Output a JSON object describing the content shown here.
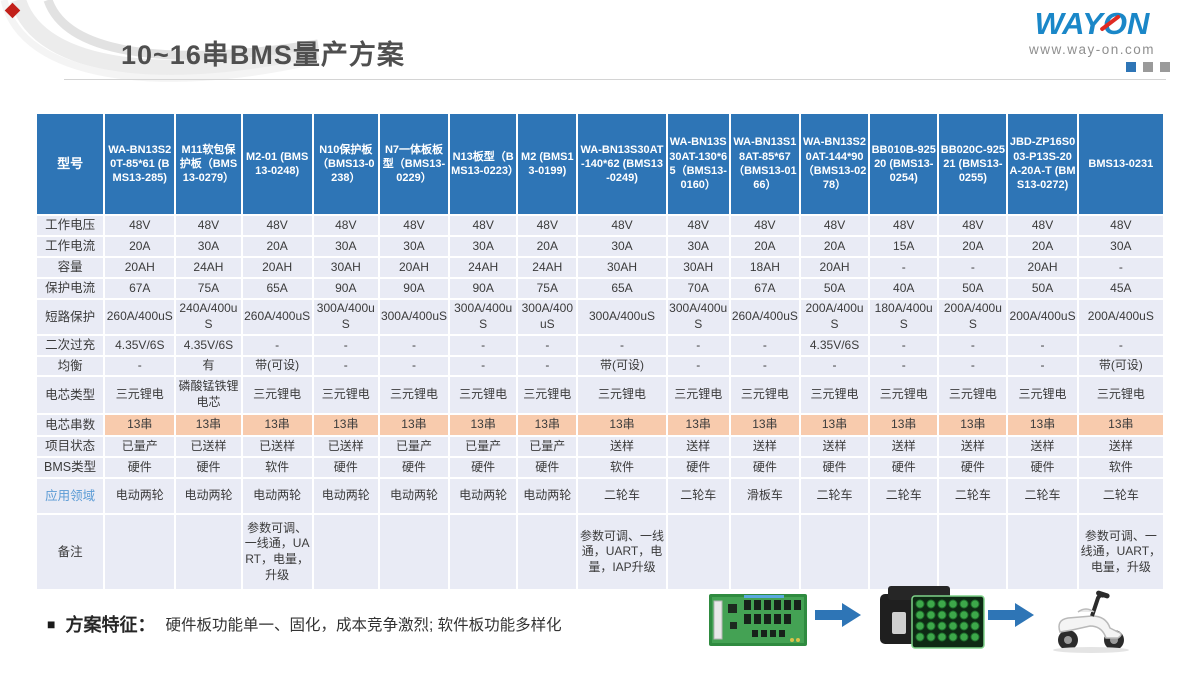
{
  "title": "10~16串BMS量产方案",
  "logo": {
    "brand_way": "WAY",
    "brand_o": "O",
    "brand_n": "N",
    "site": "www.way-on.com"
  },
  "colors": {
    "header_blue": "#2e75b6",
    "cell_bg": "#e9ebf5",
    "highlight_orange": "#f8cbad",
    "app_label_blue": "#5b9bd5",
    "logo_blue": "#1a87c8",
    "logo_red": "#e02a22"
  },
  "table": {
    "corner": "型号",
    "models": [
      "WA-BN13S20T-85*61 (BMS13-285)",
      "M11软包保护板（BMS13-0279）",
      "M2-01 (BMS13-0248)",
      "N10保护板（BMS13-0238）",
      "N7一体板板型（BMS13-0229）",
      "N13板型（BMS13-0223）",
      "M2 (BMS13-0199)",
      "WA-BN13S30AT-140*62 (BMS13-0249)",
      "WA-BN13S30AT-130*65（BMS13-0160）",
      "WA-BN13S18AT-85*67（BMS13-0166）",
      "WA-BN13S20AT-144*90（BMS13-0278）",
      "BB010B-92520 (BMS13-0254)",
      "BB020C-92521 (BMS13-0255)",
      "JBD-ZP16S003-P13S-20A-20A-T (BMS13-0272)",
      "BMS13-0231"
    ],
    "rows": [
      {
        "label": "工作电压",
        "values": [
          "48V",
          "48V",
          "48V",
          "48V",
          "48V",
          "48V",
          "48V",
          "48V",
          "48V",
          "48V",
          "48V",
          "48V",
          "48V",
          "48V",
          "48V"
        ]
      },
      {
        "label": "工作电流",
        "values": [
          "20A",
          "30A",
          "20A",
          "30A",
          "30A",
          "30A",
          "20A",
          "30A",
          "30A",
          "20A",
          "20A",
          "15A",
          "20A",
          "20A",
          "30A"
        ]
      },
      {
        "label": "容量",
        "values": [
          "20AH",
          "24AH",
          "20AH",
          "30AH",
          "20AH",
          "24AH",
          "24AH",
          "30AH",
          "30AH",
          "18AH",
          "20AH",
          "-",
          "-",
          "20AH",
          "-"
        ]
      },
      {
        "label": "保护电流",
        "values": [
          "67A",
          "75A",
          "65A",
          "90A",
          "90A",
          "90A",
          "75A",
          "65A",
          "70A",
          "67A",
          "50A",
          "40A",
          "50A",
          "50A",
          "45A"
        ]
      },
      {
        "label": "短路保护",
        "values": [
          "260A/400uS",
          "240A/400uS",
          "260A/400uS",
          "300A/400uS",
          "300A/400uS",
          "300A/400uS",
          "300A/400uS",
          "300A/400uS",
          "300A/400uS",
          "260A/400uS",
          "200A/400uS",
          "180A/400uS",
          "200A/400uS",
          "200A/400uS",
          "200A/400uS"
        ]
      },
      {
        "label": "二次过充",
        "values": [
          "4.35V/6S",
          "4.35V/6S",
          "-",
          "-",
          "-",
          "-",
          "-",
          "-",
          "-",
          "-",
          "4.35V/6S",
          "-",
          "-",
          "-",
          "-"
        ]
      },
      {
        "label": "均衡",
        "values": [
          "-",
          "有",
          "带(可设)",
          "-",
          "-",
          "-",
          "-",
          "带(可设)",
          "-",
          "-",
          "-",
          "-",
          "-",
          "-",
          "带(可设)"
        ]
      },
      {
        "label": "电芯类型",
        "values": [
          "三元锂电",
          "磷酸锰铁锂电芯",
          "三元锂电",
          "三元锂电",
          "三元锂电",
          "三元锂电",
          "三元锂电",
          "三元锂电",
          "三元锂电",
          "三元锂电",
          "三元锂电",
          "三元锂电",
          "三元锂电",
          "三元锂电",
          "三元锂电"
        ]
      },
      {
        "label": "电芯串数",
        "highlight": true,
        "values": [
          "13串",
          "13串",
          "13串",
          "13串",
          "13串",
          "13串",
          "13串",
          "13串",
          "13串",
          "13串",
          "13串",
          "13串",
          "13串",
          "13串",
          "13串"
        ]
      },
      {
        "label": "项目状态",
        "values": [
          "已量产",
          "已送样",
          "已送样",
          "已送样",
          "已量产",
          "已量产",
          "已量产",
          "送样",
          "送样",
          "送样",
          "送样",
          "送样",
          "送样",
          "送样",
          "送样"
        ]
      },
      {
        "label": "BMS类型",
        "values": [
          "硬件",
          "硬件",
          "软件",
          "硬件",
          "硬件",
          "硬件",
          "硬件",
          "软件",
          "硬件",
          "硬件",
          "硬件",
          "硬件",
          "硬件",
          "硬件",
          "软件"
        ]
      },
      {
        "label": "应用领域",
        "label_style": "blue",
        "values": [
          "电动两轮",
          "电动两轮",
          "电动两轮",
          "电动两轮",
          "电动两轮",
          "电动两轮",
          "电动两轮",
          "二轮车",
          "二轮车",
          "滑板车",
          "二轮车",
          "二轮车",
          "二轮车",
          "二轮车",
          "二轮车"
        ]
      },
      {
        "label": "备注",
        "values": [
          "",
          "",
          "参数可调、一线通，UART，电量，升级",
          "",
          "",
          "",
          "",
          "参数可调、一线通，UART，电量，IAP升级",
          "",
          "",
          "",
          "",
          "",
          "",
          "参数可调、一线通，UART，电量，升级"
        ]
      }
    ]
  },
  "footer": {
    "bullet": "■",
    "feature_label": "方案特征：",
    "feature_text": "硬件板功能单一、固化，成本竞争激烈; 软件板功能多样化"
  },
  "flow_images": [
    "bms-pcb-board",
    "battery-pack",
    "electric-scooter"
  ]
}
